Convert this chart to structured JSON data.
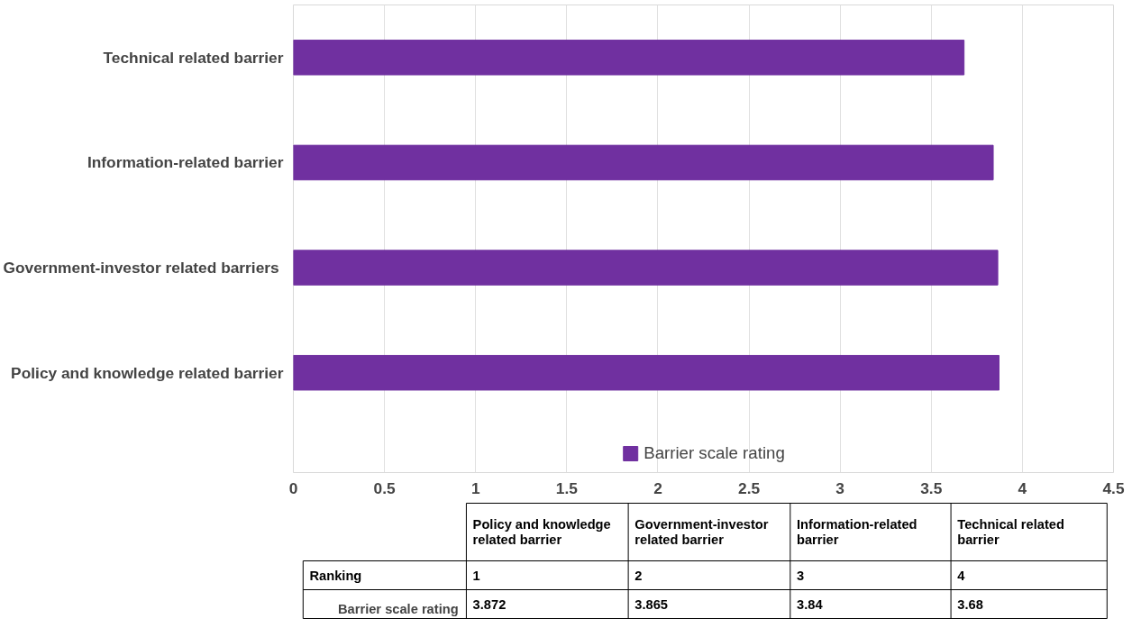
{
  "chart_data": {
    "type": "bar",
    "orientation": "horizontal",
    "categories": [
      "Technical related barrier",
      "Information-related barrier",
      "Government-investor  related barriers",
      "Policy and knowledge related barrier"
    ],
    "series": [
      {
        "name": "Barrier scale rating",
        "color": "#7030a0",
        "values": [
          3.68,
          3.84,
          3.865,
          3.872
        ]
      }
    ],
    "xlim": [
      0,
      4.5
    ],
    "xticks": [
      0,
      0.5,
      1,
      1.5,
      2,
      2.5,
      3,
      3.5,
      4,
      4.5
    ],
    "grid": "x",
    "legend": "bottom",
    "annotations": [
      "Policy and knowledge related barrier",
      "Government-investor related barrier",
      "Information-related barrier",
      "Technical related barrier",
      "Ranking",
      "1",
      "2",
      "3",
      "4",
      "3.872",
      "3.865",
      "3.84",
      "3.68"
    ]
  }
}
